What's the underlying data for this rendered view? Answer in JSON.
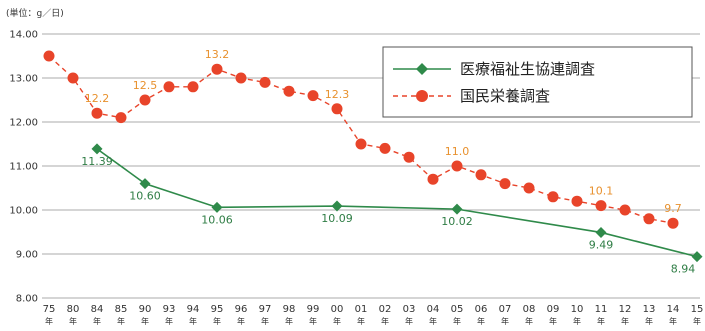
{
  "chart_data": {
    "type": "line",
    "unit_label": "(単位：g／日)",
    "year_suffix": "年",
    "categories": [
      "75",
      "80",
      "84",
      "85",
      "90",
      "93",
      "94",
      "95",
      "96",
      "97",
      "98",
      "99",
      "00",
      "01",
      "02",
      "03",
      "04",
      "05",
      "06",
      "07",
      "08",
      "09",
      "10",
      "11",
      "12",
      "13",
      "14",
      "15"
    ],
    "y_ticks": [
      "14.00",
      "13.00",
      "12.00",
      "11.00",
      "10.00",
      "9.00",
      "8.00"
    ],
    "ylim": [
      8,
      14
    ],
    "grid": true,
    "legend_position": "top-right",
    "series": [
      {
        "name": "医療福祉生協連調査",
        "color": "#2f8a4a",
        "style": "solid",
        "marker": "diamond",
        "points": [
          {
            "x": "84",
            "y": 11.39,
            "label": "11.39"
          },
          {
            "x": "90",
            "y": 10.6,
            "label": "10.60"
          },
          {
            "x": "95",
            "y": 10.06,
            "label": "10.06"
          },
          {
            "x": "00",
            "y": 10.09,
            "label": "10.09"
          },
          {
            "x": "05",
            "y": 10.02,
            "label": "10.02"
          },
          {
            "x": "11",
            "y": 9.49,
            "label": "9.49"
          },
          {
            "x": "15",
            "y": 8.94,
            "label": "8.94"
          }
        ]
      },
      {
        "name": "国民栄養調査",
        "color": "#e8442a",
        "style": "dashed",
        "marker": "circle",
        "points": [
          {
            "x": "75",
            "y": 13.5
          },
          {
            "x": "80",
            "y": 13.0
          },
          {
            "x": "84",
            "y": 12.2,
            "label": "12.2"
          },
          {
            "x": "85",
            "y": 12.1
          },
          {
            "x": "90",
            "y": 12.5,
            "label": "12.5"
          },
          {
            "x": "93",
            "y": 12.8
          },
          {
            "x": "94",
            "y": 12.8
          },
          {
            "x": "95",
            "y": 13.2,
            "label": "13.2"
          },
          {
            "x": "96",
            "y": 13.0
          },
          {
            "x": "97",
            "y": 12.9
          },
          {
            "x": "98",
            "y": 12.7
          },
          {
            "x": "99",
            "y": 12.6
          },
          {
            "x": "00",
            "y": 12.3,
            "label": "12.3"
          },
          {
            "x": "01",
            "y": 11.5
          },
          {
            "x": "02",
            "y": 11.4
          },
          {
            "x": "03",
            "y": 11.2
          },
          {
            "x": "04",
            "y": 10.7
          },
          {
            "x": "05",
            "y": 11.0,
            "label": "11.0"
          },
          {
            "x": "06",
            "y": 10.8
          },
          {
            "x": "07",
            "y": 10.6
          },
          {
            "x": "08",
            "y": 10.5
          },
          {
            "x": "09",
            "y": 10.3
          },
          {
            "x": "10",
            "y": 10.2
          },
          {
            "x": "11",
            "y": 10.1,
            "label": "10.1"
          },
          {
            "x": "12",
            "y": 10.0
          },
          {
            "x": "13",
            "y": 9.8
          },
          {
            "x": "14",
            "y": 9.7,
            "label": "9.7"
          }
        ]
      }
    ]
  }
}
